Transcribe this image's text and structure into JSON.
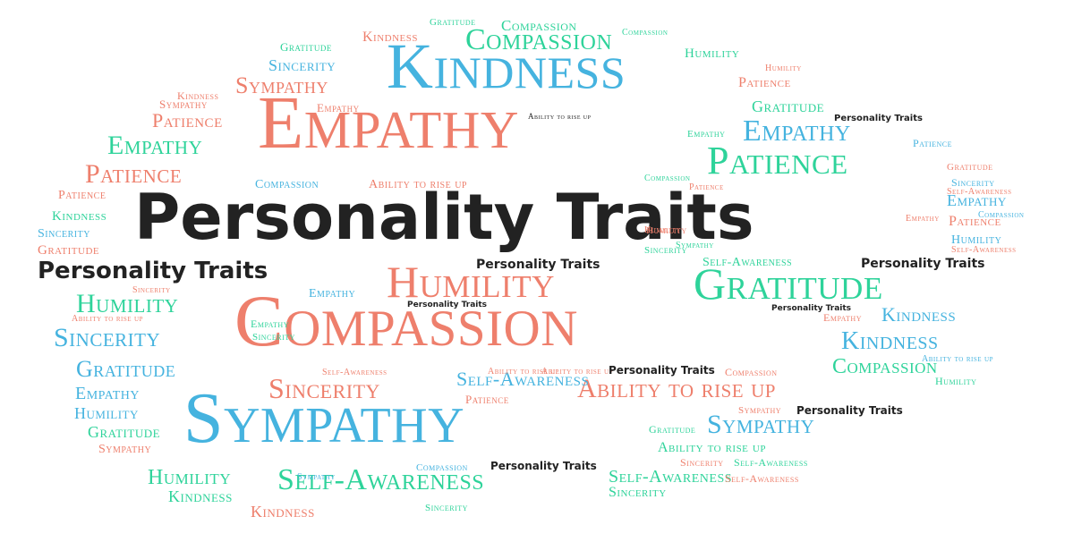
{
  "colors": {
    "red": "#EE7F6C",
    "blue": "#45B3DF",
    "teal": "#2ED39A",
    "black": "#222222"
  },
  "words": [
    {
      "text": "Personality Traits",
      "color": "black"
    },
    {
      "text": "Empathy",
      "color": "red"
    },
    {
      "text": "Kindness",
      "color": "blue"
    },
    {
      "text": "Compassion",
      "color": "red"
    },
    {
      "text": "Sympathy",
      "color": "blue"
    },
    {
      "text": "Humility",
      "color": "red"
    },
    {
      "text": "Gratitude",
      "color": "teal"
    },
    {
      "text": "Patience",
      "color": "teal"
    },
    {
      "text": "Compassion",
      "color": "teal"
    },
    {
      "text": "Ability to rise up",
      "color": "red"
    },
    {
      "text": "Self-Awareness",
      "color": "teal"
    },
    {
      "text": "Sincerity",
      "color": "red"
    },
    {
      "text": "Personality Traits",
      "color": "black"
    },
    {
      "text": "Sympathy",
      "color": "red"
    },
    {
      "text": "Kindness",
      "color": "red"
    },
    {
      "text": "Sincerity",
      "color": "blue"
    },
    {
      "text": "Gratitude",
      "color": "teal"
    },
    {
      "text": "Compassion",
      "color": "teal"
    },
    {
      "text": "Gratitude",
      "color": "teal"
    },
    {
      "text": "Compassion",
      "color": "teal"
    },
    {
      "text": "Humility",
      "color": "teal"
    },
    {
      "text": "Humility",
      "color": "red"
    },
    {
      "text": "Patience",
      "color": "red"
    },
    {
      "text": "Gratitude",
      "color": "teal"
    },
    {
      "text": "Personality Traits",
      "color": "black"
    },
    {
      "text": "Empathy",
      "color": "blue"
    },
    {
      "text": "Patience",
      "color": "blue"
    },
    {
      "text": "Gratitude",
      "color": "red"
    },
    {
      "text": "Sincerity",
      "color": "blue"
    },
    {
      "text": "Self-Awareness",
      "color": "red"
    },
    {
      "text": "Empathy",
      "color": "blue"
    },
    {
      "text": "Patience",
      "color": "red"
    },
    {
      "text": "Compassion",
      "color": "blue"
    },
    {
      "text": "Humility",
      "color": "blue"
    },
    {
      "text": "Self-Awareness",
      "color": "red"
    },
    {
      "text": "Kindness",
      "color": "red"
    },
    {
      "text": "Sympathy",
      "color": "red"
    },
    {
      "text": "Empathy",
      "color": "red"
    },
    {
      "text": "Patience",
      "color": "red"
    },
    {
      "text": "Ability to rise up",
      "color": "black"
    },
    {
      "text": "Empathy",
      "color": "teal"
    },
    {
      "text": "Patience",
      "color": "red"
    },
    {
      "text": "Compassion",
      "color": "blue"
    },
    {
      "text": "Ability to rise up",
      "color": "red"
    },
    {
      "text": "Patience",
      "color": "red"
    },
    {
      "text": "Kindness",
      "color": "teal"
    },
    {
      "text": "Sincerity",
      "color": "blue"
    },
    {
      "text": "Gratitude",
      "color": "red"
    },
    {
      "text": "Personality Traits",
      "color": "black"
    },
    {
      "text": "Humility",
      "color": "teal"
    },
    {
      "text": "Sincerity",
      "color": "red"
    },
    {
      "text": "Ability to rise up",
      "color": "red"
    },
    {
      "text": "Sincerity",
      "color": "blue"
    },
    {
      "text": "Empathy",
      "color": "teal"
    },
    {
      "text": "Sincerity",
      "color": "teal"
    },
    {
      "text": "Gratitude",
      "color": "blue"
    },
    {
      "text": "Empathy",
      "color": "blue"
    },
    {
      "text": "Humility",
      "color": "blue"
    },
    {
      "text": "Gratitude",
      "color": "teal"
    },
    {
      "text": "Sympathy",
      "color": "red"
    },
    {
      "text": "Empathy",
      "color": "blue"
    },
    {
      "text": "Personality Traits",
      "color": "black"
    },
    {
      "text": "Patience",
      "color": "red"
    },
    {
      "text": "Humility",
      "color": "red"
    },
    {
      "text": "Self-Awareness",
      "color": "teal"
    },
    {
      "text": "Personality Traits",
      "color": "black"
    },
    {
      "text": "Personality Traits",
      "color": "black"
    },
    {
      "text": "Empathy",
      "color": "red"
    },
    {
      "text": "Kindness",
      "color": "blue"
    },
    {
      "text": "Kindness",
      "color": "blue"
    },
    {
      "text": "Compassion",
      "color": "teal"
    },
    {
      "text": "Ability to rise up",
      "color": "blue"
    },
    {
      "text": "Humility",
      "color": "teal"
    },
    {
      "text": "Sympathy",
      "color": "red"
    },
    {
      "text": "Personality Traits",
      "color": "black"
    },
    {
      "text": "Sympathy",
      "color": "blue"
    },
    {
      "text": "Gratitude",
      "color": "teal"
    },
    {
      "text": "Ability to rise up",
      "color": "teal"
    },
    {
      "text": "Sincerity",
      "color": "red"
    },
    {
      "text": "Self-Awareness",
      "color": "teal"
    },
    {
      "text": "Self-Awareness",
      "color": "teal"
    },
    {
      "text": "Sincerity",
      "color": "teal"
    },
    {
      "text": "Self-Awareness",
      "color": "red"
    },
    {
      "text": "Compassion",
      "color": "blue"
    },
    {
      "text": "Personality Traits",
      "color": "black"
    },
    {
      "text": "Humility",
      "color": "teal"
    },
    {
      "text": "Kindness",
      "color": "teal"
    },
    {
      "text": "Kindness",
      "color": "red"
    },
    {
      "text": "Self-Awareness",
      "color": "red"
    },
    {
      "text": "Self-Awareness",
      "color": "blue"
    },
    {
      "text": "Ability to rise up",
      "color": "red"
    },
    {
      "text": "Ability to rise up",
      "color": "red"
    },
    {
      "text": "Compassion",
      "color": "red"
    },
    {
      "text": "Patience",
      "color": "red"
    },
    {
      "text": "Humility",
      "color": "red"
    },
    {
      "text": "Sympathy",
      "color": "teal"
    },
    {
      "text": "Sincerity",
      "color": "teal"
    },
    {
      "text": "Empathy",
      "color": "teal"
    },
    {
      "text": "Compassion",
      "color": "teal"
    },
    {
      "text": "Sympathy",
      "color": "blue"
    },
    {
      "text": "Personality Traits",
      "color": "black"
    },
    {
      "text": "Sincerity",
      "color": "teal"
    },
    {
      "text": "Empathy",
      "color": "red"
    }
  ]
}
